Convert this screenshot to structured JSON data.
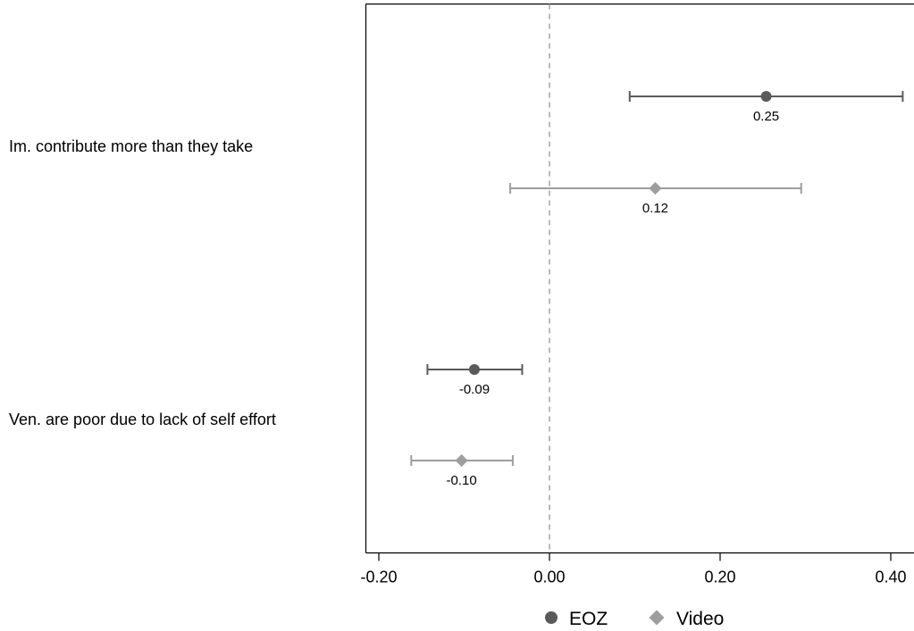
{
  "chart_data": {
    "type": "scatter",
    "subtype": "coefficient-plot",
    "title": "",
    "xlabel": "",
    "ylabel": "",
    "xlim": [
      -0.2,
      0.42
    ],
    "x_ticks": [
      -0.2,
      0.0,
      0.2,
      0.4
    ],
    "x_tick_labels": [
      "-0.20",
      "0.00",
      "0.20",
      "0.40"
    ],
    "reference_line": 0.0,
    "grid": false,
    "legend_position": "bottom",
    "categories": [
      "Im. contribute more than they take",
      "Ven. are poor due to lack of self effort"
    ],
    "series": [
      {
        "name": "EOZ",
        "marker": "circle",
        "color": "#5a5a5a",
        "points": [
          {
            "category": "Im. contribute more than they take",
            "estimate": 0.254,
            "ci_low": 0.094,
            "ci_high": 0.414,
            "label": "0.25"
          },
          {
            "category": "Ven. are poor due to lack of self effort",
            "estimate": -0.088,
            "ci_low": -0.143,
            "ci_high": -0.032,
            "label": "-0.09"
          }
        ]
      },
      {
        "name": "Video",
        "marker": "diamond",
        "color": "#9e9e9e",
        "points": [
          {
            "category": "Im. contribute more than they take",
            "estimate": 0.124,
            "ci_low": -0.046,
            "ci_high": 0.295,
            "label": "0.12"
          },
          {
            "category": "Ven. are poor due to lack of self effort",
            "estimate": -0.103,
            "ci_low": -0.162,
            "ci_high": -0.043,
            "label": "-0.10"
          }
        ]
      }
    ]
  }
}
